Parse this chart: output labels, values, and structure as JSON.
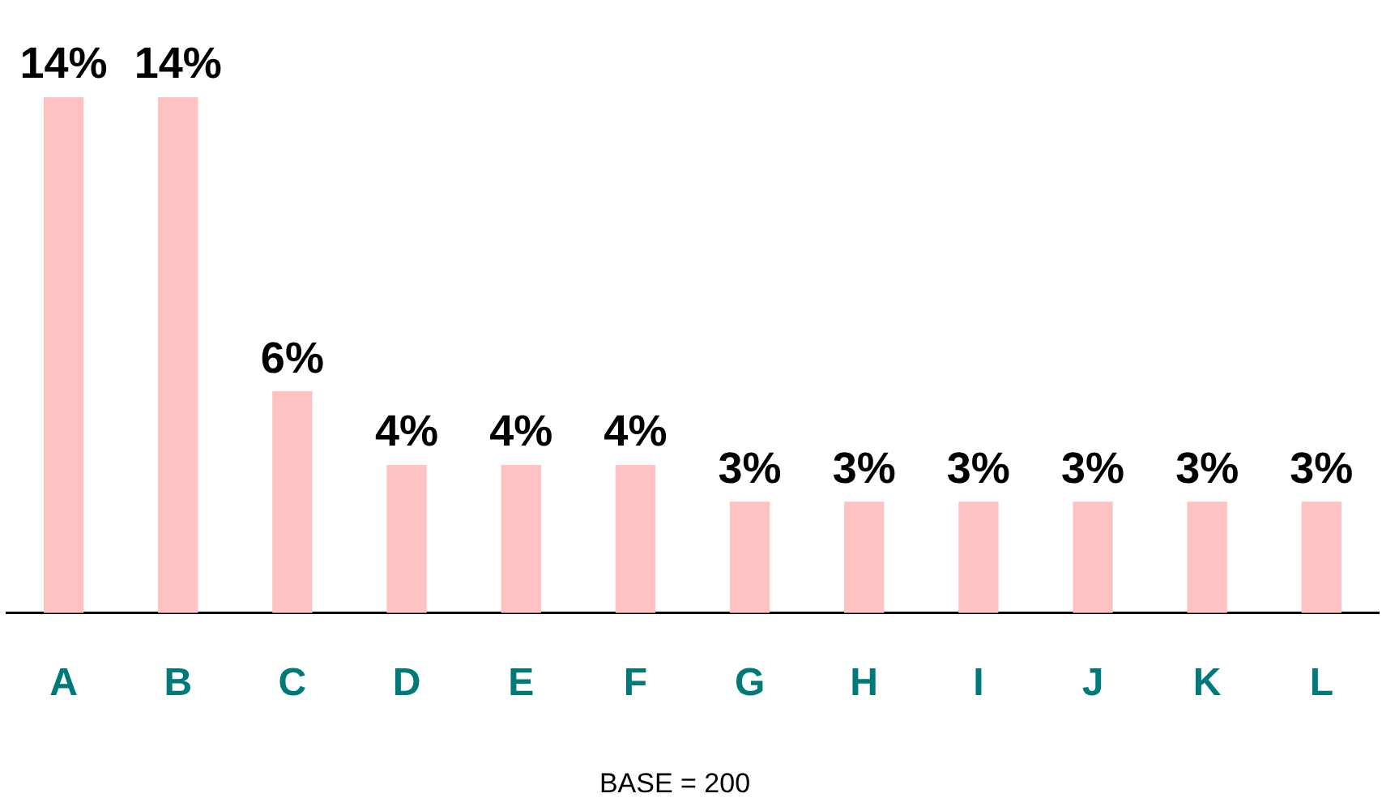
{
  "chart_data": {
    "type": "bar",
    "categories": [
      "A",
      "B",
      "C",
      "D",
      "E",
      "F",
      "G",
      "H",
      "I",
      "J",
      "K",
      "L"
    ],
    "values": [
      14,
      14,
      6,
      4,
      4,
      4,
      3,
      3,
      3,
      3,
      3,
      3
    ],
    "value_labels": [
      "14%",
      "14%",
      "6%",
      "4%",
      "4%",
      "4%",
      "3%",
      "3%",
      "3%",
      "3%",
      "3%",
      "3%"
    ],
    "color": "#ffc2c2",
    "grid": false,
    "legend": false,
    "annotations": [
      "BASE = 200"
    ]
  }
}
